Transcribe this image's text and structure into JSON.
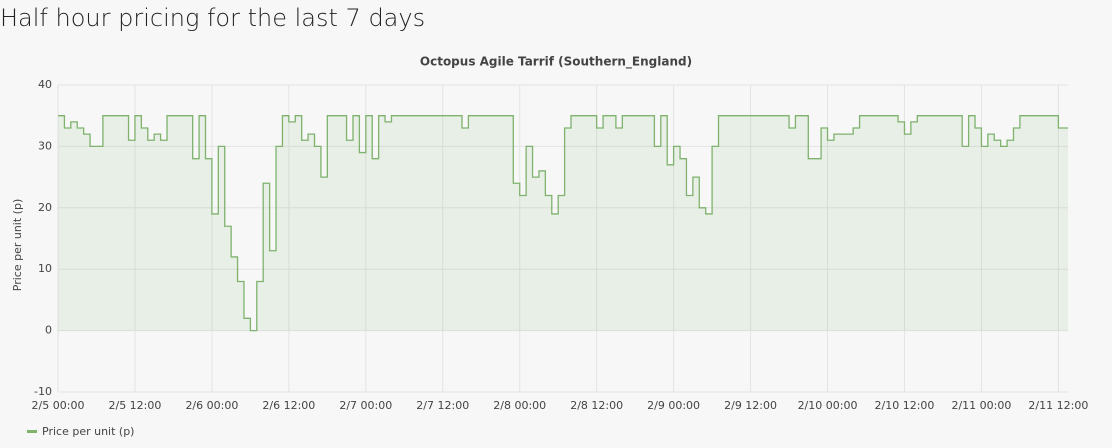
{
  "page_title": "Half hour pricing for the last 7 days",
  "chart_data": {
    "type": "line",
    "step": true,
    "area": true,
    "title": "Octopus Agile Tarrif (Southern_England)",
    "y_label": "Price per unit (p)",
    "xlim": [
      "2/5 00:00",
      "2/11 13:30"
    ],
    "xticks": [
      "2/5 00:00",
      "2/5 12:00",
      "2/6 00:00",
      "2/6 12:00",
      "2/7 00:00",
      "2/7 12:00",
      "2/8 00:00",
      "2/8 12:00",
      "2/9 00:00",
      "2/9 12:00",
      "2/10 00:00",
      "2/10 12:00",
      "2/11 00:00",
      "2/11 12:00"
    ],
    "ylim": [
      -10,
      40
    ],
    "yticks": [
      -10,
      0,
      10,
      20,
      30,
      40
    ],
    "grid": true,
    "x": [
      "2/5 00:00",
      "2/5 01:00",
      "2/5 02:00",
      "2/5 03:00",
      "2/5 04:00",
      "2/5 05:00",
      "2/5 06:00",
      "2/5 07:00",
      "2/5 08:00",
      "2/5 09:00",
      "2/5 10:00",
      "2/5 11:00",
      "2/5 12:00",
      "2/5 13:00",
      "2/5 14:00",
      "2/5 15:00",
      "2/5 16:00",
      "2/5 17:00",
      "2/5 18:00",
      "2/5 19:00",
      "2/5 20:00",
      "2/5 21:00",
      "2/5 22:00",
      "2/5 23:00",
      "2/6 00:00",
      "2/6 01:00",
      "2/6 02:00",
      "2/6 03:00",
      "2/6 04:00",
      "2/6 05:00",
      "2/6 06:00",
      "2/6 07:00",
      "2/6 08:00",
      "2/6 09:00",
      "2/6 10:00",
      "2/6 11:00",
      "2/6 12:00",
      "2/6 13:00",
      "2/6 14:00",
      "2/6 15:00",
      "2/6 16:00",
      "2/6 17:00",
      "2/6 18:00",
      "2/6 19:00",
      "2/6 20:00",
      "2/6 21:00",
      "2/6 22:00",
      "2/6 23:00",
      "2/7 00:00",
      "2/7 01:00",
      "2/7 02:00",
      "2/7 03:00",
      "2/7 04:00",
      "2/7 05:00",
      "2/7 06:00",
      "2/7 07:00",
      "2/7 08:00",
      "2/7 09:00",
      "2/7 10:00",
      "2/7 11:00",
      "2/7 12:00",
      "2/7 13:00",
      "2/7 14:00",
      "2/7 15:00",
      "2/7 16:00",
      "2/7 17:00",
      "2/7 18:00",
      "2/7 19:00",
      "2/7 20:00",
      "2/7 21:00",
      "2/7 22:00",
      "2/7 23:00",
      "2/8 00:00",
      "2/8 01:00",
      "2/8 02:00",
      "2/8 03:00",
      "2/8 04:00",
      "2/8 05:00",
      "2/8 06:00",
      "2/8 07:00",
      "2/8 08:00",
      "2/8 09:00",
      "2/8 10:00",
      "2/8 11:00",
      "2/8 12:00",
      "2/8 13:00",
      "2/8 14:00",
      "2/8 15:00",
      "2/8 16:00",
      "2/8 17:00",
      "2/8 18:00",
      "2/8 19:00",
      "2/8 20:00",
      "2/8 21:00",
      "2/8 22:00",
      "2/8 23:00",
      "2/9 00:00",
      "2/9 01:00",
      "2/9 02:00",
      "2/9 03:00",
      "2/9 04:00",
      "2/9 05:00",
      "2/9 06:00",
      "2/9 07:00",
      "2/9 08:00",
      "2/9 09:00",
      "2/9 10:00",
      "2/9 11:00",
      "2/9 12:00",
      "2/9 13:00",
      "2/9 14:00",
      "2/9 15:00",
      "2/9 16:00",
      "2/9 17:00",
      "2/9 18:00",
      "2/9 19:00",
      "2/9 20:00",
      "2/9 21:00",
      "2/9 22:00",
      "2/9 23:00",
      "2/10 00:00",
      "2/10 01:00",
      "2/10 02:00",
      "2/10 03:00",
      "2/10 04:00",
      "2/10 05:00",
      "2/10 06:00",
      "2/10 07:00",
      "2/10 08:00",
      "2/10 09:00",
      "2/10 10:00",
      "2/10 11:00",
      "2/10 12:00",
      "2/10 13:00",
      "2/10 14:00",
      "2/10 15:00",
      "2/10 16:00",
      "2/10 17:00",
      "2/10 18:00",
      "2/10 19:00",
      "2/10 20:00",
      "2/10 21:00",
      "2/10 22:00",
      "2/10 23:00",
      "2/11 00:00",
      "2/11 01:00",
      "2/11 02:00",
      "2/11 03:00",
      "2/11 04:00",
      "2/11 05:00",
      "2/11 06:00",
      "2/11 07:00",
      "2/11 08:00",
      "2/11 09:00",
      "2/11 10:00",
      "2/11 11:00",
      "2/11 12:00",
      "2/11 13:00"
    ],
    "series": [
      {
        "name": "Price per unit (p)",
        "color": "#7eb26d",
        "values": [
          35,
          33,
          34,
          33,
          32,
          30,
          30,
          35,
          35,
          35,
          35,
          31,
          35,
          33,
          31,
          32,
          31,
          35,
          35,
          35,
          35,
          28,
          35,
          28,
          19,
          30,
          17,
          12,
          8,
          2,
          0,
          8,
          24,
          13,
          30,
          35,
          34,
          35,
          31,
          32,
          30,
          25,
          35,
          35,
          35,
          31,
          35,
          29,
          35,
          28,
          35,
          34,
          35,
          35,
          35,
          35,
          35,
          35,
          35,
          35,
          35,
          35,
          35,
          33,
          35,
          35,
          35,
          35,
          35,
          35,
          35,
          24,
          22,
          30,
          25,
          26,
          22,
          19,
          22,
          33,
          35,
          35,
          35,
          35,
          33,
          35,
          35,
          33,
          35,
          35,
          35,
          35,
          35,
          30,
          35,
          27,
          30,
          28,
          22,
          25,
          20,
          19,
          30,
          35,
          35,
          35,
          35,
          35,
          35,
          35,
          35,
          35,
          35,
          35,
          33,
          35,
          35,
          28,
          28,
          33,
          31,
          32,
          32,
          32,
          33,
          35,
          35,
          35,
          35,
          35,
          35,
          34,
          32,
          34,
          35,
          35,
          35,
          35,
          35,
          35,
          35,
          30,
          35,
          33,
          30,
          32,
          31,
          30,
          31,
          33,
          35,
          35,
          35,
          35,
          35,
          35,
          33,
          33
        ]
      }
    ]
  }
}
